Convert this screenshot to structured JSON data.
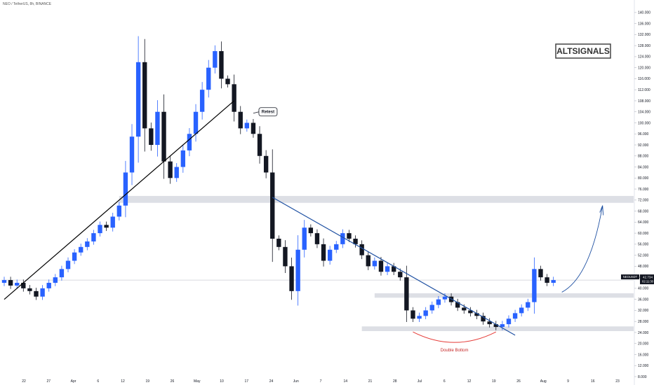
{
  "title": "NEO / TetherUS, 8h, BINANCE",
  "watermark": "ALTSIGNALS",
  "colors": {
    "up": "#2962ff",
    "down": "#131722",
    "trendline": "#000000",
    "downtrend": "#1e50a2",
    "zone": "#d1d4dc",
    "zone_highlight": "#c3d6f2",
    "arc": "#e53935",
    "projection": "#1e50a2",
    "price_tag": "#131722",
    "grid": "#dddddd",
    "text": "#131722"
  },
  "chart_data": {
    "type": "candlestick",
    "ylim": [
      8,
      142
    ],
    "y_ticks": [
      8,
      12,
      16,
      20,
      24,
      28,
      32,
      36,
      40,
      44,
      48,
      52,
      56,
      60,
      64,
      68,
      72,
      76,
      80,
      84,
      88,
      92,
      96,
      100,
      104,
      108,
      112,
      116,
      120,
      124,
      128,
      132,
      136,
      140
    ],
    "x_ticks": [
      "22",
      "27",
      "Apr",
      "6",
      "12",
      "19",
      "26",
      "May",
      "10",
      "17",
      "24",
      "Jun",
      "7",
      "14",
      "21",
      "28",
      "Jul",
      "6",
      "12",
      "19",
      "26",
      "Aug",
      "9",
      "16",
      "23"
    ],
    "last_price": "42.734",
    "symbol_tag": "NEOUSDT",
    "countdown": "02:11:30",
    "series": [
      {
        "close": 43
      },
      {
        "close": 41
      },
      {
        "close": 42
      },
      {
        "close": 40
      },
      {
        "close": 39
      },
      {
        "close": 37
      },
      {
        "close": 40
      },
      {
        "close": 42
      },
      {
        "close": 44
      },
      {
        "close": 47
      },
      {
        "close": 50
      },
      {
        "close": 53
      },
      {
        "close": 55
      },
      {
        "close": 57
      },
      {
        "close": 60
      },
      {
        "close": 63
      },
      {
        "close": 62
      },
      {
        "close": 66
      },
      {
        "close": 70
      },
      {
        "close": 82
      },
      {
        "close": 95
      },
      {
        "close": 122
      },
      {
        "close": 98
      },
      {
        "close": 92
      },
      {
        "close": 104
      },
      {
        "close": 86
      },
      {
        "close": 80
      },
      {
        "close": 84
      },
      {
        "close": 90
      },
      {
        "close": 96
      },
      {
        "close": 104
      },
      {
        "close": 112
      },
      {
        "close": 120
      },
      {
        "close": 126
      },
      {
        "close": 116
      },
      {
        "close": 114
      },
      {
        "close": 104
      },
      {
        "close": 98
      },
      {
        "close": 100
      },
      {
        "close": 96
      },
      {
        "close": 88
      },
      {
        "close": 82
      },
      {
        "close": 58
      },
      {
        "close": 55
      },
      {
        "close": 48
      },
      {
        "close": 39
      },
      {
        "close": 54
      },
      {
        "close": 62
      },
      {
        "close": 60
      },
      {
        "close": 56
      },
      {
        "close": 50
      },
      {
        "close": 54
      },
      {
        "close": 56
      },
      {
        "close": 60
      },
      {
        "close": 58
      },
      {
        "close": 56
      },
      {
        "close": 52
      },
      {
        "close": 48
      },
      {
        "close": 50
      },
      {
        "close": 46
      },
      {
        "close": 48
      },
      {
        "close": 46
      },
      {
        "close": 44
      },
      {
        "close": 32
      },
      {
        "close": 29
      },
      {
        "close": 30
      },
      {
        "close": 32
      },
      {
        "close": 34
      },
      {
        "close": 36
      },
      {
        "close": 37
      },
      {
        "close": 35
      },
      {
        "close": 33
      },
      {
        "close": 32
      },
      {
        "close": 31
      },
      {
        "close": 30
      },
      {
        "close": 28
      },
      {
        "close": 27
      },
      {
        "close": 26
      },
      {
        "close": 27
      },
      {
        "close": 29
      },
      {
        "close": 31
      },
      {
        "close": 33
      },
      {
        "close": 35
      },
      {
        "close": 47
      },
      {
        "close": 44
      },
      {
        "close": 42
      },
      {
        "close": 43
      }
    ],
    "zones": [
      {
        "from": 71,
        "to": 73.5,
        "start": 18
      },
      {
        "from": 36.6,
        "to": 38.2,
        "start": 58
      },
      {
        "from": 24.5,
        "to": 26.2,
        "start": 56
      }
    ],
    "lines": [
      {
        "name": "support-trendline",
        "from": [
          0,
          36
        ],
        "to": [
          36,
          108
        ]
      },
      {
        "name": "downtrend-line",
        "from": [
          42,
          73
        ],
        "to": [
          80,
          23
        ]
      }
    ],
    "annotations": [
      "Retest",
      "Double Bottom"
    ]
  }
}
